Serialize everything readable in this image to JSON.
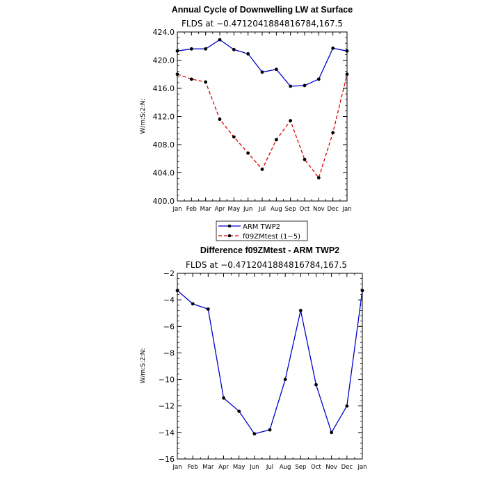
{
  "chart_data": [
    {
      "type": "line",
      "title": "Annual Cycle of Downwelling LW at Surface",
      "subtitle": "FLDS at −0.4712041884816784,167.5",
      "ylabel": "W/m:S:2:N:",
      "ylim": [
        400,
        424
      ],
      "yticks": [
        "400.0",
        "404.0",
        "408.0",
        "412.0",
        "416.0",
        "420.0",
        "424.0"
      ],
      "ytick_values": [
        400,
        404,
        408,
        412,
        416,
        420,
        424
      ],
      "categories": [
        "Jan",
        "Feb",
        "Mar",
        "Apr",
        "May",
        "Jun",
        "Jul",
        "Aug",
        "Sep",
        "Oct",
        "Nov",
        "Dec",
        "Jan"
      ],
      "legend_placement": "bottom",
      "series": [
        {
          "name": "ARM TWP2",
          "color": "#0000cc",
          "dash": "solid",
          "values": [
            421.3,
            421.6,
            421.6,
            422.9,
            421.5,
            420.9,
            418.3,
            418.7,
            416.3,
            416.4,
            417.3,
            421.7,
            421.3
          ]
        },
        {
          "name": "f09ZMtest (1−5)",
          "color": "#e00000",
          "dash": "dashed",
          "values": [
            418.0,
            417.3,
            416.9,
            411.6,
            409.1,
            406.8,
            404.5,
            408.7,
            411.4,
            405.9,
            403.3,
            409.7,
            418.0
          ]
        }
      ]
    },
    {
      "type": "line",
      "title": "Difference f09ZMtest - ARM TWP2",
      "subtitle": "FLDS at −0.4712041884816784,167.5",
      "ylabel": "W/m:S:2:N:",
      "ylim": [
        -16,
        -2
      ],
      "yticks": [
        "−16",
        "−14",
        "−12",
        "−10",
        "−8",
        "−6",
        "−4",
        "−2"
      ],
      "ytick_values": [
        -16,
        -14,
        -12,
        -10,
        -8,
        -6,
        -4,
        -2
      ],
      "categories": [
        "Jan",
        "Feb",
        "Mar",
        "Apr",
        "May",
        "Jun",
        "Jul",
        "Aug",
        "Sep",
        "Oct",
        "Nov",
        "Dec",
        "Jan"
      ],
      "series": [
        {
          "color": "#0000cc",
          "dash": "solid",
          "values": [
            -3.3,
            -4.3,
            -4.7,
            -11.4,
            -12.4,
            -14.1,
            -13.8,
            -10.0,
            -4.8,
            -10.4,
            -14.0,
            -12.0,
            -3.3
          ]
        }
      ]
    }
  ]
}
